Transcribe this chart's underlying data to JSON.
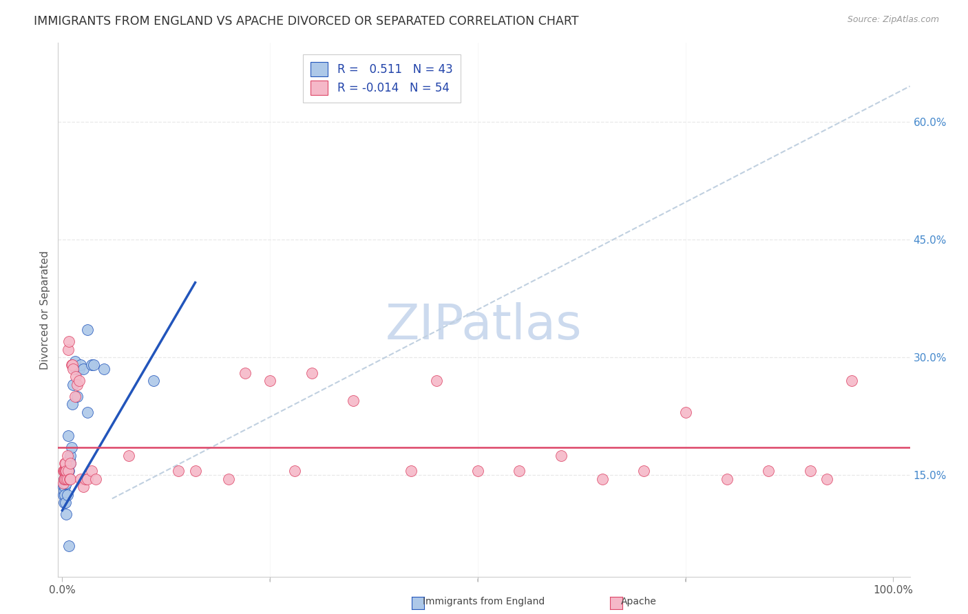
{
  "title": "IMMIGRANTS FROM ENGLAND VS APACHE DIVORCED OR SEPARATED CORRELATION CHART",
  "source": "Source: ZipAtlas.com",
  "ylabel": "Divorced or Separated",
  "ytick_labels": [
    "15.0%",
    "30.0%",
    "45.0%",
    "60.0%"
  ],
  "ytick_values": [
    0.15,
    0.3,
    0.45,
    0.6
  ],
  "xlim": [
    -0.005,
    1.02
  ],
  "ylim": [
    0.02,
    0.7
  ],
  "legend_label1": "Immigrants from England",
  "legend_label2": "Apache",
  "r1": "0.511",
  "n1": "43",
  "r2": "-0.014",
  "n2": "54",
  "color_blue": "#adc8e8",
  "color_pink": "#f5b8c8",
  "trendline_blue": "#2255bb",
  "trendline_pink": "#dd4466",
  "trendline_dashed": "#c0d0e0",
  "watermark_color": "#ccdaee",
  "background_color": "#ffffff",
  "grid_color": "#e8e8e8",
  "blue_scatter_x": [
    0.001,
    0.001,
    0.002,
    0.002,
    0.002,
    0.003,
    0.003,
    0.003,
    0.003,
    0.004,
    0.004,
    0.004,
    0.005,
    0.005,
    0.005,
    0.005,
    0.006,
    0.006,
    0.006,
    0.007,
    0.007,
    0.008,
    0.008,
    0.009,
    0.009,
    0.01,
    0.01,
    0.011,
    0.012,
    0.013,
    0.015,
    0.016,
    0.018,
    0.02,
    0.022,
    0.025,
    0.03,
    0.03,
    0.035,
    0.038,
    0.05,
    0.11,
    0.008
  ],
  "blue_scatter_y": [
    0.125,
    0.135,
    0.13,
    0.145,
    0.115,
    0.14,
    0.135,
    0.125,
    0.155,
    0.14,
    0.145,
    0.115,
    0.14,
    0.155,
    0.145,
    0.1,
    0.145,
    0.155,
    0.125,
    0.145,
    0.2,
    0.145,
    0.155,
    0.165,
    0.17,
    0.165,
    0.175,
    0.185,
    0.24,
    0.265,
    0.295,
    0.285,
    0.25,
    0.285,
    0.29,
    0.285,
    0.335,
    0.23,
    0.29,
    0.29,
    0.285,
    0.27,
    0.06
  ],
  "pink_scatter_x": [
    0.001,
    0.001,
    0.002,
    0.002,
    0.003,
    0.003,
    0.003,
    0.004,
    0.004,
    0.005,
    0.005,
    0.006,
    0.006,
    0.007,
    0.007,
    0.008,
    0.009,
    0.01,
    0.01,
    0.011,
    0.012,
    0.013,
    0.015,
    0.016,
    0.018,
    0.02,
    0.022,
    0.025,
    0.028,
    0.03,
    0.035,
    0.04,
    0.14,
    0.16,
    0.2,
    0.22,
    0.25,
    0.28,
    0.3,
    0.35,
    0.42,
    0.45,
    0.5,
    0.55,
    0.6,
    0.65,
    0.7,
    0.75,
    0.8,
    0.85,
    0.9,
    0.92,
    0.95,
    0.08
  ],
  "pink_scatter_y": [
    0.14,
    0.155,
    0.145,
    0.155,
    0.155,
    0.165,
    0.145,
    0.155,
    0.165,
    0.145,
    0.155,
    0.175,
    0.145,
    0.155,
    0.31,
    0.32,
    0.145,
    0.165,
    0.145,
    0.29,
    0.29,
    0.285,
    0.25,
    0.275,
    0.265,
    0.27,
    0.145,
    0.135,
    0.145,
    0.145,
    0.155,
    0.145,
    0.155,
    0.155,
    0.145,
    0.28,
    0.27,
    0.155,
    0.28,
    0.245,
    0.155,
    0.27,
    0.155,
    0.155,
    0.175,
    0.145,
    0.155,
    0.23,
    0.145,
    0.155,
    0.155,
    0.145,
    0.27,
    0.175
  ],
  "blue_trend_x0": 0.0,
  "blue_trend_x1": 0.16,
  "blue_trend_y0": 0.105,
  "blue_trend_y1": 0.395,
  "pink_trend_y": 0.185,
  "dashed_trend_x0": 0.06,
  "dashed_trend_x1": 1.02,
  "dashed_trend_y0": 0.12,
  "dashed_trend_y1": 0.645
}
